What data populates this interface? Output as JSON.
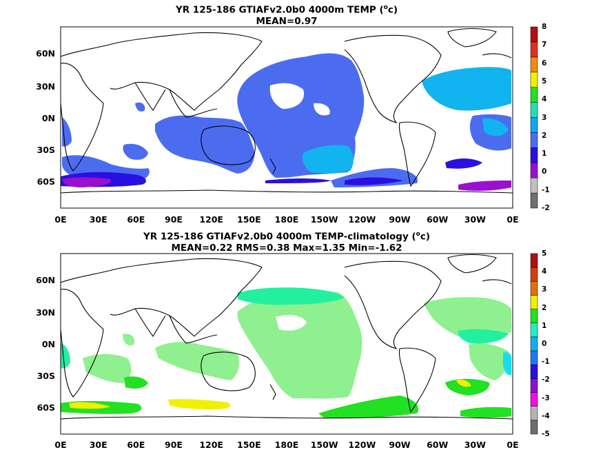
{
  "panels": [
    {
      "title_line1": "YR 125-186 GTIAFv2.0b0 4000m TEMP (",
      "title_unit_sup": "o",
      "title_unit_tail": "c)",
      "title_line2": "MEAN=0.97",
      "colorbar_labels": [
        "8",
        "7",
        "6",
        "5",
        "4",
        "3",
        "2",
        "1",
        "0",
        "-1",
        "-2"
      ]
    },
    {
      "title_line1": "YR 125-186 GTIAFv2.0b0 4000m TEMP-climatology (",
      "title_unit_sup": "o",
      "title_unit_tail": "c)",
      "title_line2": "MEAN=0.22   RMS=0.38   Max=1.35   Min=-1.62",
      "colorbar_labels": [
        "5",
        "4",
        "3",
        "2",
        "1",
        "0",
        "-1",
        "-2",
        "-3",
        "-4",
        "-5"
      ]
    }
  ],
  "lat_labels": [
    "60N",
    "30N",
    "0N",
    "30S",
    "60S"
  ],
  "lon_labels": [
    "0E",
    "30E",
    "60E",
    "90E",
    "120E",
    "150E",
    "180E",
    "150W",
    "120W",
    "90W",
    "60W",
    "30W",
    "0E"
  ],
  "colors": {
    "top_colorbar": [
      "#6e6e6e",
      "#c0c0c0",
      "#9a10d0",
      "#2a10e0",
      "#4c6cf0",
      "#12a8f0",
      "#22e0b4",
      "#22e022",
      "#f0f000",
      "#f08c10",
      "#e03020",
      "#b01010"
    ],
    "bottom_colorbar": [
      "#6e6e6e",
      "#b4b4b4",
      "#f010e0",
      "#8a10d0",
      "#2a10e0",
      "#1e78f0",
      "#12b0f0",
      "#22f0c0",
      "#22e022",
      "#f0f000",
      "#e07010",
      "#d04010",
      "#b01010"
    ],
    "top_field_main": "#4c6cf0",
    "top_field_light": "#12b4f0",
    "top_field_dark": "#2a10e0",
    "top_field_purple": "#9a10d0",
    "bottom_field_green": "#8ef08e",
    "bottom_field_mint": "#22f0a0",
    "bottom_field_bright": "#22e022",
    "bottom_field_yellow": "#f0f000",
    "bottom_field_cyan": "#12e0f0"
  }
}
